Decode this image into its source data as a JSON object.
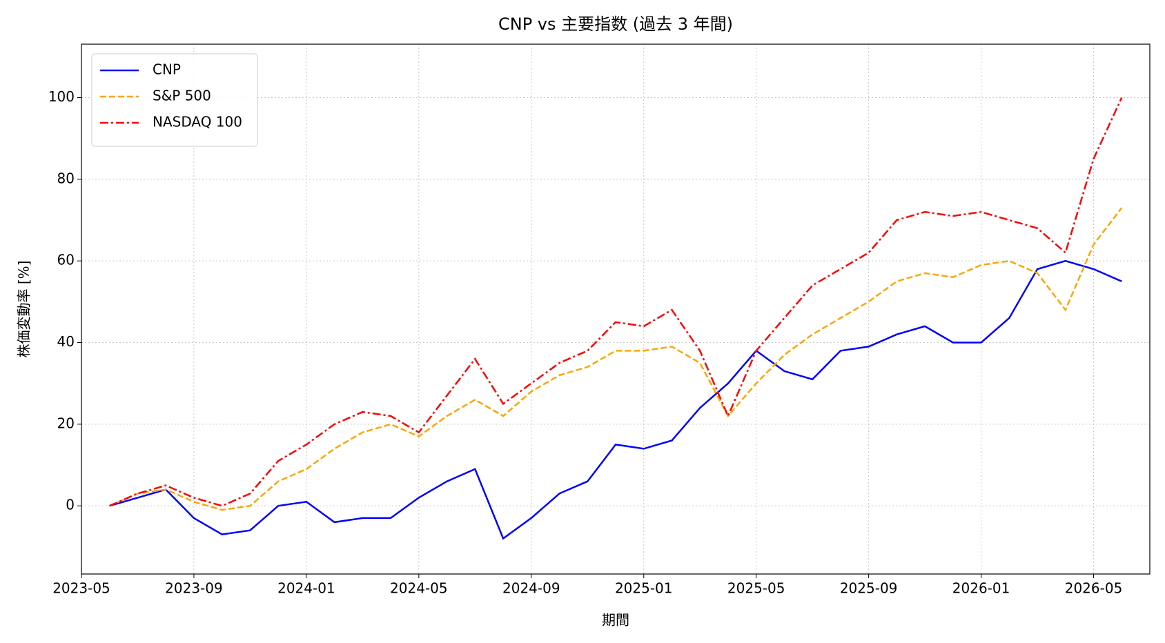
{
  "chart_data": {
    "type": "line",
    "title": "CNP vs 主要指数 (過去 3 年間)",
    "x_label": "期間",
    "y_label": "株価変動率 [%]",
    "x": [
      "2023-06",
      "2023-07",
      "2023-08",
      "2023-09",
      "2023-10",
      "2023-11",
      "2023-12",
      "2024-01",
      "2024-02",
      "2024-03",
      "2024-04",
      "2024-05",
      "2024-06",
      "2024-07",
      "2024-08",
      "2024-09",
      "2024-10",
      "2024-11",
      "2024-12",
      "2025-01",
      "2025-02",
      "2025-03",
      "2025-04",
      "2025-05",
      "2025-06",
      "2025-07",
      "2025-08",
      "2025-09",
      "2025-10",
      "2025-11",
      "2025-12",
      "2026-01",
      "2026-02",
      "2026-03",
      "2026-04",
      "2026-05",
      "2026-06"
    ],
    "series": [
      {
        "name": "CNP",
        "color": "#0000ff",
        "linestyle": "solid",
        "values": [
          0,
          2,
          4,
          -3,
          -7,
          -6,
          0,
          1,
          -4,
          -3,
          -3,
          2,
          6,
          9,
          -8,
          -3,
          3,
          6,
          15,
          14,
          16,
          24,
          30,
          38,
          33,
          31,
          38,
          39,
          42,
          44,
          40,
          40,
          46,
          58,
          60,
          58,
          55
        ]
      },
      {
        "name": "S&P 500",
        "color": "#ffa500",
        "linestyle": "dashed",
        "values": [
          0,
          3,
          4,
          1,
          -1,
          0,
          6,
          9,
          14,
          18,
          20,
          17,
          22,
          26,
          22,
          28,
          32,
          34,
          38,
          38,
          39,
          35,
          22,
          30,
          37,
          42,
          46,
          50,
          55,
          57,
          56,
          59,
          60,
          57,
          48,
          64,
          73
        ]
      },
      {
        "name": "NASDAQ 100",
        "color": "#ff0000",
        "linestyle": "dashdot",
        "values": [
          0,
          3,
          5,
          2,
          0,
          3,
          11,
          15,
          20,
          23,
          22,
          18,
          27,
          36,
          25,
          30,
          35,
          38,
          45,
          44,
          48,
          38,
          22,
          38,
          46,
          54,
          58,
          62,
          70,
          72,
          71,
          72,
          70,
          68,
          62,
          85,
          100
        ]
      }
    ],
    "xlim": [
      "2023-05",
      "2026-07"
    ],
    "xticks": [
      "2023-05",
      "2023-09",
      "2024-01",
      "2024-05",
      "2024-09",
      "2025-01",
      "2025-05",
      "2025-09",
      "2026-01",
      "2026-05"
    ],
    "ylim": [
      -16.7,
      113.1
    ],
    "yticks": [
      0,
      20,
      40,
      60,
      80,
      100
    ],
    "grid": true,
    "legend": "upper left"
  }
}
